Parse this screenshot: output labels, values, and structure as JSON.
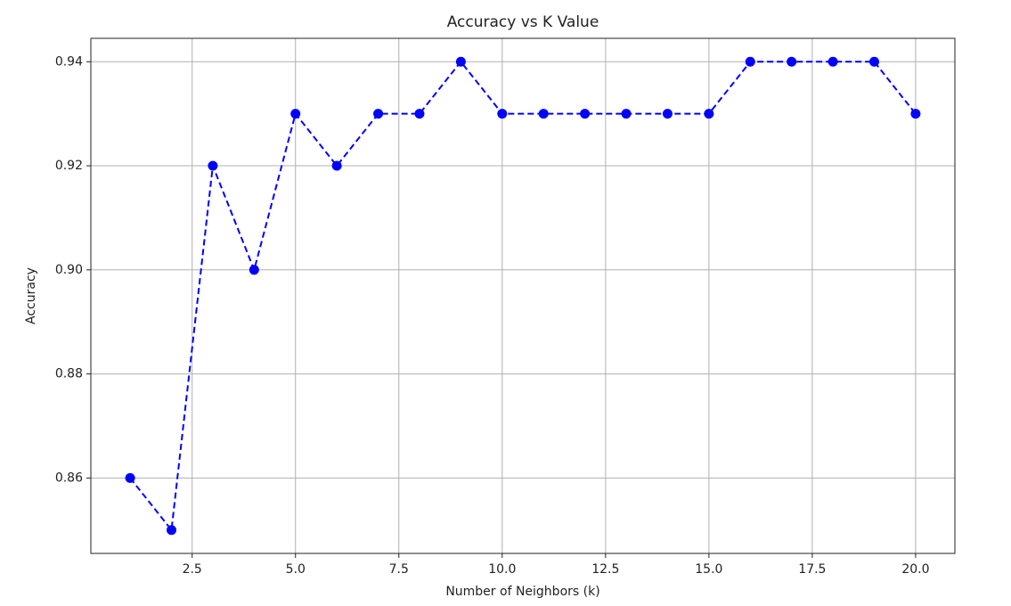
{
  "chart_data": {
    "type": "line",
    "title": "Accuracy vs K Value",
    "x_label": "Number of Neighbors (k)",
    "y_label": "Accuracy",
    "x": [
      1,
      2,
      3,
      4,
      5,
      6,
      7,
      8,
      9,
      10,
      11,
      12,
      13,
      14,
      15,
      16,
      17,
      18,
      19,
      20
    ],
    "series": [
      {
        "name": "Accuracy",
        "color": "#0000ff",
        "line_style": "dashed",
        "marker": "circle",
        "values": [
          0.86,
          0.85,
          0.92,
          0.9,
          0.93,
          0.92,
          0.93,
          0.93,
          0.94,
          0.93,
          0.93,
          0.93,
          0.93,
          0.93,
          0.93,
          0.94,
          0.94,
          0.94,
          0.94,
          0.93
        ]
      }
    ],
    "xlim": [
      0.05,
      20.95
    ],
    "xticks": [
      {
        "value": 2.5,
        "label": "2.5"
      },
      {
        "value": 5,
        "label": "5.0"
      },
      {
        "value": 7.5,
        "label": "7.5"
      },
      {
        "value": 10,
        "label": "10.0"
      },
      {
        "value": 12.5,
        "label": "12.5"
      },
      {
        "value": 15,
        "label": "15.0"
      },
      {
        "value": 17.5,
        "label": "17.5"
      },
      {
        "value": 20,
        "label": "20.0"
      }
    ],
    "ylim": [
      0.8455,
      0.9445
    ],
    "yticks": [
      0.86,
      0.88,
      {
        "value": 0.9,
        "label": "0.90"
      },
      0.92,
      0.94
    ],
    "grid": true
  }
}
